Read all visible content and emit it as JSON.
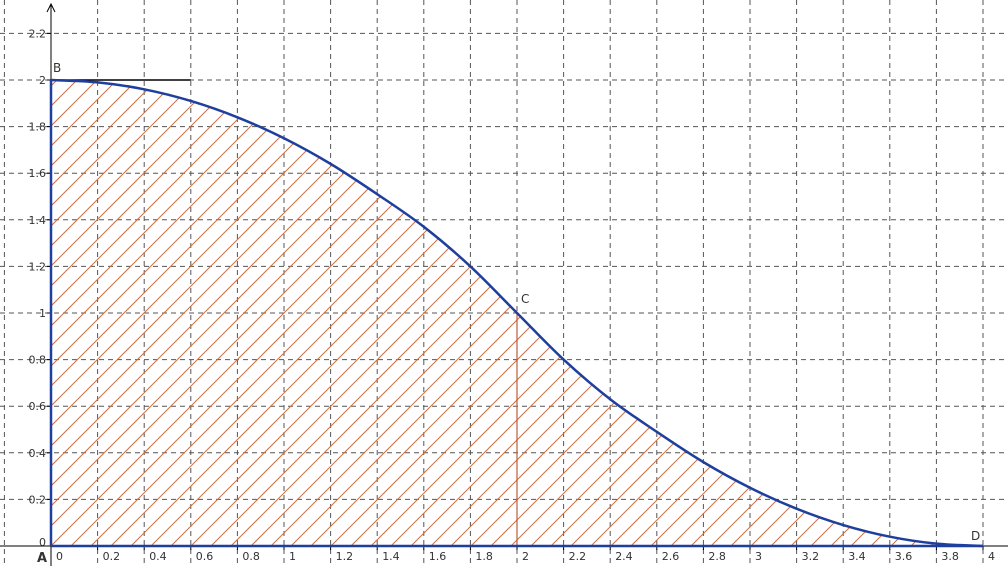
{
  "chart_data": {
    "type": "area",
    "title": "",
    "xlabel": "",
    "ylabel": "",
    "xlim": [
      0,
      4
    ],
    "ylim": [
      0,
      2.3
    ],
    "grid": true,
    "x_ticks": [
      "0",
      "0.2",
      "0.4",
      "0.6",
      "0.8",
      "1",
      "1.2",
      "1.4",
      "1.6",
      "1.8",
      "2",
      "2.2",
      "2.4",
      "2.6",
      "2.8",
      "3",
      "3.2",
      "3.4",
      "3.6",
      "3.8",
      "4"
    ],
    "y_ticks": [
      "0",
      "0.2",
      "0.4",
      "0.6",
      "0.8",
      "1",
      "1.2",
      "1.4",
      "1.6",
      "1.8",
      "2",
      "2.2"
    ],
    "curve": {
      "color": "#1f3f9e",
      "x": [
        0,
        0.2,
        0.4,
        0.6,
        0.8,
        1.0,
        1.2,
        1.4,
        1.6,
        1.8,
        2.0,
        2.2,
        2.4,
        2.6,
        2.8,
        3.0,
        3.2,
        3.4,
        3.6,
        3.8,
        4.0
      ],
      "y": [
        2.0,
        1.99,
        1.96,
        1.91,
        1.84,
        1.75,
        1.64,
        1.51,
        1.37,
        1.2,
        1.0,
        0.8,
        0.63,
        0.49,
        0.36,
        0.25,
        0.16,
        0.09,
        0.04,
        0.01,
        0.0
      ]
    },
    "hatch_color": "#c8704a",
    "tangent_segment": {
      "from": [
        0,
        2
      ],
      "to": [
        0.6,
        2
      ],
      "color": "#000000"
    },
    "divider": {
      "x": 2,
      "y_top": 1.0,
      "color": "#c05a3a"
    },
    "points": [
      {
        "name": "A",
        "x": 0,
        "y": 0
      },
      {
        "name": "B",
        "x": 0,
        "y": 2
      },
      {
        "name": "C",
        "x": 2,
        "y": 1
      },
      {
        "name": "D",
        "x": 4,
        "y": 0
      }
    ]
  }
}
